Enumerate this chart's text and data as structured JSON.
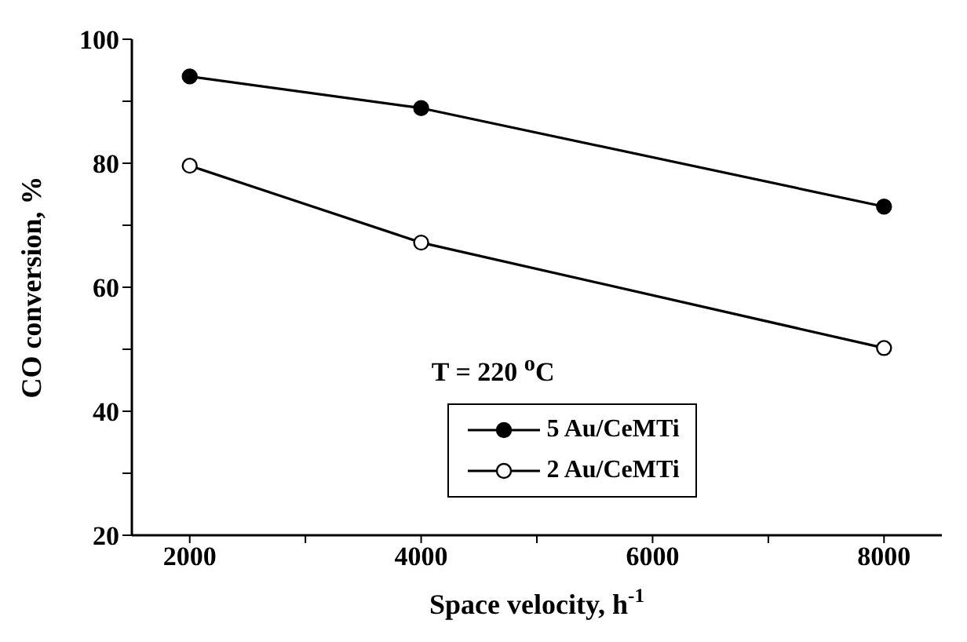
{
  "chart_data": {
    "type": "line",
    "xlabel": "Space velocity, h$^{-1}$",
    "ylabel": "CO conversion, %",
    "x": [
      2000,
      4000,
      8000
    ],
    "series": [
      {
        "name": "5 Au/CeMTi",
        "color": "#000000",
        "values": [
          94,
          88.9,
          73
        ]
      },
      {
        "name": "2 Au/CeMTi",
        "color": "#000000",
        "values": [
          79.6,
          67.2,
          50.2
        ]
      }
    ],
    "xlim": [
      1500,
      8500
    ],
    "xticks": [
      2000,
      {
        "value": 3000,
        "label": null
      },
      4000,
      {
        "value": 5000,
        "label": null
      },
      6000,
      {
        "value": 7000,
        "label": null
      },
      8000
    ],
    "ylim": [
      20,
      100
    ],
    "yticks": [
      20,
      {
        "value": 30,
        "label": null
      },
      40,
      {
        "value": 50,
        "label": null
      },
      60,
      {
        "value": 70,
        "label": null
      },
      80,
      {
        "value": 90,
        "label": null
      },
      100
    ],
    "annotations": [
      "T = 220 $^{o}$C"
    ],
    "legend": "bottom",
    "marker": "circle",
    "line_style": "solid",
    "grid": false
  }
}
